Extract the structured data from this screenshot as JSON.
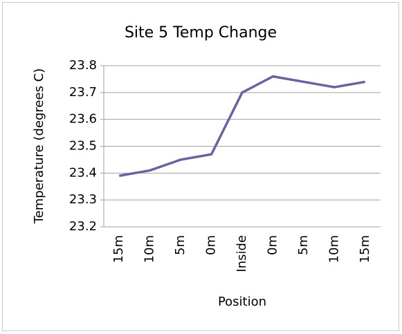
{
  "chart_data": {
    "type": "line",
    "title": "Site 5 Temp Change",
    "x_label": "Position",
    "y_label": "Temperature (degrees C)",
    "categories": [
      "15m",
      "10m",
      "5m",
      "0m",
      "Inside",
      "0m",
      "5m",
      "10m",
      "15m"
    ],
    "values": [
      23.39,
      23.41,
      23.45,
      23.47,
      23.7,
      23.76,
      23.74,
      23.72,
      23.74
    ],
    "color": "#6464a0",
    "ylim": [
      23.2,
      23.8
    ],
    "yticks": [
      23.2,
      23.3,
      23.4,
      23.5,
      23.6,
      23.7,
      23.8
    ],
    "grid": true
  }
}
